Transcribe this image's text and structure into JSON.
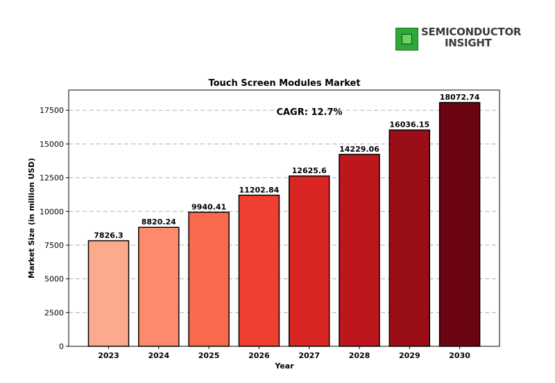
{
  "brand": {
    "line1": "SEMICONDUCTOR",
    "line2": "INSIGHT",
    "mark_color": "#2fa83a"
  },
  "chart_data": {
    "type": "bar",
    "title": "Touch Screen Modules Market",
    "xlabel": "Year",
    "ylabel": "Market Size (in million USD)",
    "annotation": "CAGR: 12.7%",
    "categories": [
      "2023",
      "2024",
      "2025",
      "2026",
      "2027",
      "2028",
      "2029",
      "2030"
    ],
    "values": [
      7826.3,
      8820.24,
      9940.41,
      11202.84,
      12625.6,
      14229.06,
      16036.15,
      18072.74
    ],
    "value_labels": [
      "7826.3",
      "8820.24",
      "9940.41",
      "11202.84",
      "12625.6",
      "14229.06",
      "16036.15",
      "18072.74"
    ],
    "colors": [
      "#fcaa8e",
      "#fc8a6b",
      "#f96a4d",
      "#ef3f30",
      "#d92624",
      "#bd161c",
      "#9a0e18",
      "#6b0512"
    ],
    "ylim": [
      0,
      19000
    ],
    "yticks": [
      0,
      2500,
      5000,
      7500,
      10000,
      12500,
      15000,
      17500
    ],
    "ytick_labels": [
      "0",
      "2500",
      "5000",
      "7500",
      "10000",
      "12500",
      "15000",
      "17500"
    ],
    "grid": "horizontal-dashed",
    "legend": "none"
  }
}
